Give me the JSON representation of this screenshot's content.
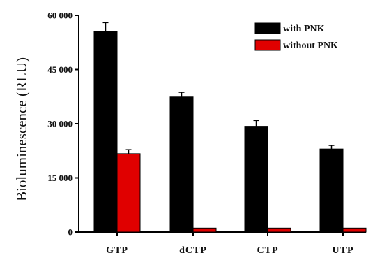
{
  "chart_data": {
    "type": "bar",
    "categories": [
      "GTP",
      "dCTP",
      "CTP",
      "UTP"
    ],
    "series": [
      {
        "name": "with PNK",
        "values": [
          55500,
          37400,
          29300,
          23000
        ],
        "errors": [
          2500,
          1300,
          1600,
          1000
        ],
        "color": "#000000"
      },
      {
        "name": "without PNK",
        "values": [
          21700,
          1100,
          1100,
          1100
        ],
        "errors": [
          1100,
          0,
          0,
          0
        ],
        "color": "#e00000"
      }
    ],
    "ylabel": "Bioluminescence (RLU)",
    "xlabel": "",
    "ylim": [
      0,
      60000
    ],
    "yticks": [
      0,
      15000,
      30000,
      45000,
      60000
    ],
    "ytick_labels": [
      "0",
      "15 000",
      "30 000",
      "45 000",
      "60 000"
    ],
    "legend_position": "top-right",
    "grid": false
  }
}
